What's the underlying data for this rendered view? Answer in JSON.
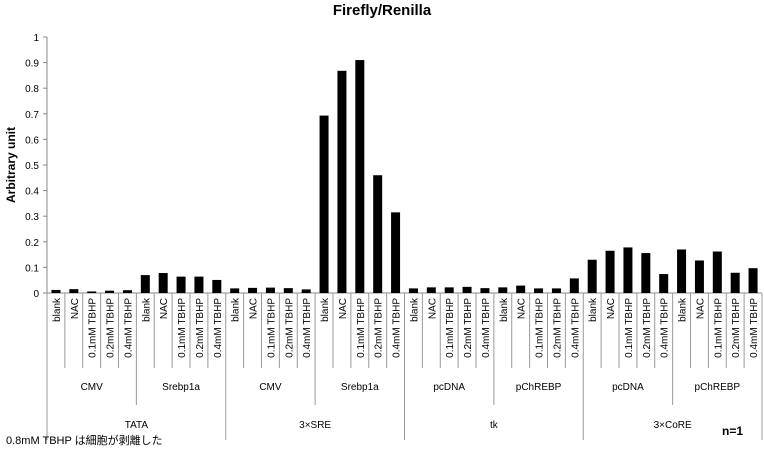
{
  "chart_data": {
    "type": "bar",
    "title": "Firefly/Renilla",
    "ylabel": "Arbitrary unit",
    "ylim": [
      0,
      1
    ],
    "yticks": [
      "0",
      "0.1",
      "0.2",
      "0.3",
      "0.4",
      "0.5",
      "0.6",
      "0.7",
      "0.8",
      "0.9",
      "1"
    ],
    "bar_color": "#000000",
    "grid": false,
    "treatments": [
      "blank",
      "NAC",
      "0.1mM TBHP",
      "0.2mM TBHP",
      "0.4mM TBHP"
    ],
    "subgroups": [
      "CMV",
      "Srebp1a",
      "CMV",
      "Srebp1a",
      "pcDNA",
      "pChREBP",
      "pcDNA",
      "pChREBP"
    ],
    "groups": [
      "TATA",
      "3×SRE",
      "tk",
      "3×CoRE"
    ],
    "values": [
      0.012,
      0.015,
      0.006,
      0.009,
      0.011,
      0.07,
      0.078,
      0.064,
      0.064,
      0.051,
      0.018,
      0.02,
      0.021,
      0.019,
      0.014,
      0.693,
      0.868,
      0.91,
      0.46,
      0.315,
      0.018,
      0.022,
      0.022,
      0.024,
      0.019,
      0.022,
      0.029,
      0.018,
      0.018,
      0.057,
      0.13,
      0.165,
      0.178,
      0.156,
      0.074,
      0.17,
      0.127,
      0.162,
      0.079,
      0.097
    ]
  },
  "footnote": "0.8mM TBHP は細胞が剥離した",
  "n_label": "n=1"
}
